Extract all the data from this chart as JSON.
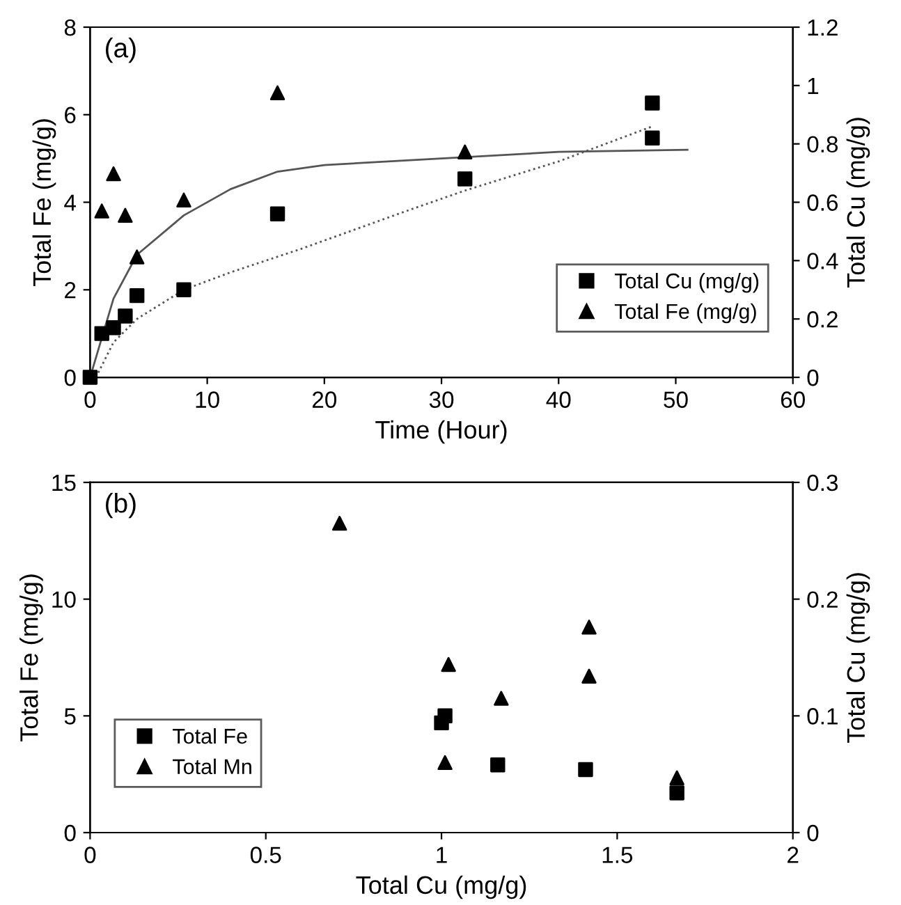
{
  "chart_data": [
    {
      "type": "scatter",
      "xlabel": "Time (Hour)",
      "ylabel": "Total Fe (mg/g)",
      "y2label": "Total Cu (mg/g)",
      "annotations": [
        "(a)"
      ],
      "xlim": [
        0,
        60
      ],
      "xticks": [
        0,
        10,
        20,
        30,
        40,
        50,
        60
      ],
      "ylim": [
        0,
        8
      ],
      "yticks": [
        0,
        2,
        4,
        6,
        8
      ],
      "y2lim": [
        0,
        1.2
      ],
      "y2ticks": [
        0,
        0.2,
        0.4,
        0.6,
        0.8,
        1,
        1.2
      ],
      "grid": false,
      "legend": "bottom right",
      "series": [
        {
          "name": "Total Cu (mg/g)",
          "axis": "y2",
          "marker": "square",
          "color": "#000000",
          "x": [
            0,
            1,
            2,
            3,
            4,
            8,
            16,
            32,
            48,
            48
          ],
          "values": [
            0,
            0.15,
            0.17,
            0.21,
            0.28,
            0.3,
            0.56,
            0.68,
            0.94,
            0.82
          ]
        },
        {
          "name": "Total Fe (mg/g)",
          "axis": "y",
          "marker": "triangle",
          "color": "#000000",
          "x": [
            1,
            2,
            3,
            4,
            8,
            16,
            32
          ],
          "values": [
            3.8,
            4.65,
            3.7,
            2.75,
            4.05,
            6.5,
            5.15
          ]
        },
        {
          "type": "line",
          "axis": "y",
          "line_style": "solid",
          "color": "#555555",
          "x": [
            0,
            2,
            4,
            8,
            12,
            16,
            20,
            30,
            40,
            51
          ],
          "values": [
            0,
            1.8,
            2.8,
            3.7,
            4.3,
            4.7,
            4.85,
            5.0,
            5.15,
            5.2
          ]
        },
        {
          "type": "line",
          "axis": "y2",
          "line_style": "dotted",
          "color": "#555555",
          "x": [
            0.5,
            2,
            4,
            8,
            12,
            18,
            27,
            32,
            40,
            48
          ],
          "values": [
            0,
            0.12,
            0.2,
            0.3,
            0.36,
            0.44,
            0.57,
            0.64,
            0.74,
            0.86
          ]
        }
      ]
    },
    {
      "type": "scatter",
      "xlabel": "Total Cu (mg/g)",
      "ylabel": "Total Fe (mg/g)",
      "y2label": "Total Cu (mg/g)",
      "annotations": [
        "(b)"
      ],
      "xlim": [
        0,
        2
      ],
      "xticks": [
        0,
        0.5,
        1,
        1.5,
        2
      ],
      "ylim": [
        0,
        15
      ],
      "yticks": [
        0,
        5,
        10,
        15
      ],
      "y2lim": [
        0,
        0.3
      ],
      "y2ticks": [
        0,
        0.1,
        0.2,
        0.3
      ],
      "grid": false,
      "legend": "bottom left",
      "series": [
        {
          "name": "Total Fe",
          "axis": "y",
          "marker": "square",
          "color": "#000000",
          "x": [
            1.0,
            1.01,
            1.16,
            1.41,
            1.67
          ],
          "values": [
            4.7,
            5.0,
            2.9,
            2.7,
            1.7
          ]
        },
        {
          "name": "Total Mn",
          "axis": "y2",
          "marker": "triangle",
          "color": "#000000",
          "x": [
            0.71,
            1.02,
            1.01,
            1.17,
            1.42,
            1.42,
            1.67
          ],
          "values": [
            0.265,
            0.144,
            0.06,
            0.115,
            0.176,
            0.134,
            0.047
          ]
        }
      ]
    }
  ]
}
